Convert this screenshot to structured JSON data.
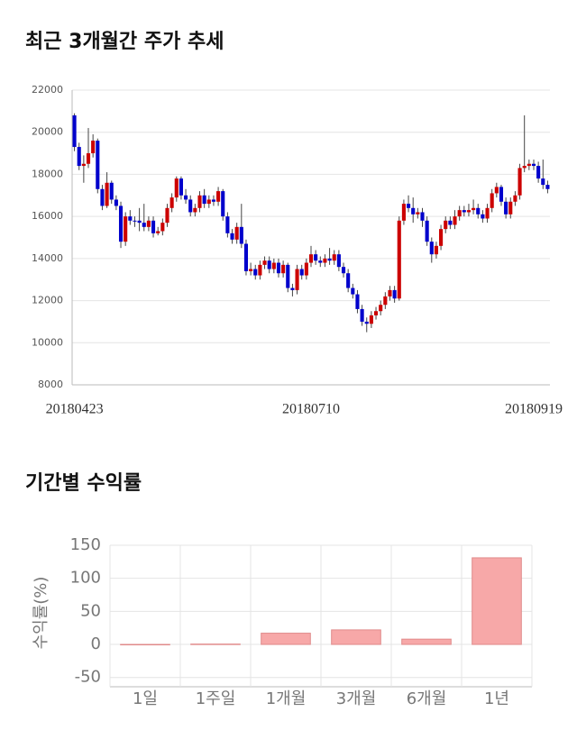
{
  "chart_data": [
    {
      "type": "candlestick",
      "title": "최근 3개월간 주가 추세",
      "categories": [
        "20180423",
        null,
        null,
        null,
        null,
        null,
        null,
        null,
        null,
        null,
        null,
        null,
        null,
        null,
        null,
        null,
        null,
        null,
        null,
        null,
        null,
        null,
        null,
        null,
        null,
        null,
        null,
        null,
        null,
        null,
        null,
        null,
        null,
        null,
        null,
        null,
        null,
        null,
        null,
        null,
        null,
        null,
        null,
        null,
        null,
        null,
        null,
        null,
        null,
        null,
        null,
        "20180710",
        null,
        null,
        null,
        null,
        null,
        null,
        null,
        null,
        null,
        null,
        null,
        null,
        null,
        null,
        null,
        null,
        null,
        null,
        null,
        null,
        null,
        null,
        null,
        null,
        null,
        null,
        null,
        null,
        null,
        null,
        null,
        null,
        null,
        null,
        null,
        null,
        null,
        null,
        null,
        null,
        null,
        null,
        null,
        null,
        null,
        null,
        null,
        "20180919",
        null,
        null,
        null
      ],
      "open": [
        20800,
        19300,
        18400,
        18500,
        19000,
        19600,
        17300,
        16500,
        17600,
        16800,
        16500,
        14800,
        16000,
        15800,
        15800,
        15700,
        15500,
        15800,
        15200,
        15300,
        15700,
        16400,
        16900,
        17800,
        17000,
        16800,
        16200,
        16400,
        17000,
        16600,
        16800,
        16700,
        17200,
        16000,
        15200,
        14900,
        15500,
        14700,
        13400,
        13500,
        13200,
        13700,
        13900,
        13500,
        13800,
        13300,
        13700,
        12600,
        12500,
        13500,
        13200,
        13800,
        14200,
        13900,
        13800,
        14000,
        13900,
        14200,
        13600,
        13300,
        12600,
        12300,
        11600,
        11000,
        10900,
        11300,
        11500,
        11800,
        12200,
        12500,
        12100,
        15800,
        16600,
        16400,
        16100,
        16200,
        15800,
        14800,
        14200,
        14600,
        15400,
        15800,
        15600,
        16000,
        16300,
        16200,
        16300,
        16400,
        16100,
        15900,
        16400,
        17100,
        17400,
        16700,
        16100,
        16700,
        17000,
        18300,
        18400,
        18500,
        18400,
        17800,
        17500
      ],
      "high": [
        20900,
        19500,
        18900,
        20200,
        19900,
        19700,
        17500,
        18100,
        17700,
        17000,
        16700,
        16200,
        16300,
        16000,
        16400,
        16600,
        16000,
        16000,
        15500,
        15900,
        16600,
        17100,
        17900,
        17900,
        17300,
        17000,
        16600,
        17200,
        17300,
        17000,
        17000,
        17400,
        17300,
        16200,
        15400,
        15700,
        16600,
        14900,
        13800,
        13700,
        13900,
        14100,
        14100,
        14000,
        14000,
        13900,
        13800,
        12800,
        13700,
        13700,
        14000,
        14600,
        14400,
        14100,
        14200,
        14500,
        14400,
        14400,
        13800,
        13500,
        12800,
        12500,
        11800,
        11200,
        11500,
        11700,
        12000,
        12400,
        12700,
        12700,
        16000,
        16800,
        17000,
        16900,
        16400,
        16400,
        16000,
        15000,
        14800,
        15600,
        16000,
        16000,
        16300,
        16500,
        16500,
        16600,
        16800,
        16600,
        16300,
        16600,
        17300,
        17600,
        17500,
        16900,
        16900,
        17200,
        18500,
        20800,
        18700,
        18700,
        18600,
        18700,
        17700
      ],
      "low": [
        19100,
        18200,
        17600,
        18300,
        18800,
        17100,
        16300,
        16400,
        16600,
        16300,
        14500,
        14600,
        15600,
        15500,
        15300,
        15300,
        15300,
        15000,
        15100,
        15100,
        15500,
        16200,
        16700,
        16800,
        16600,
        16000,
        16000,
        16200,
        16400,
        16400,
        16500,
        16500,
        15800,
        15000,
        14700,
        14700,
        14500,
        13200,
        13200,
        13000,
        13000,
        13500,
        13300,
        13300,
        13100,
        13100,
        12400,
        12200,
        12300,
        13000,
        13000,
        13600,
        13700,
        13600,
        13600,
        13700,
        13700,
        13400,
        13100,
        12400,
        12100,
        11400,
        10800,
        10500,
        10700,
        11100,
        11300,
        11600,
        12000,
        11900,
        12000,
        15600,
        16200,
        15700,
        15900,
        15500,
        14600,
        13800,
        14000,
        14400,
        15200,
        15400,
        15400,
        15800,
        16000,
        16000,
        16100,
        15900,
        15700,
        15700,
        16200,
        16900,
        16500,
        15900,
        15900,
        16500,
        16800,
        18100,
        18200,
        18200,
        17600,
        17300,
        17100
      ],
      "close": [
        19300,
        18400,
        18500,
        19000,
        19600,
        17300,
        16500,
        17600,
        16800,
        16500,
        14800,
        16000,
        15800,
        15800,
        15700,
        15500,
        15800,
        15200,
        15300,
        15700,
        16400,
        16900,
        17800,
        17000,
        16800,
        16200,
        16400,
        17000,
        16600,
        16800,
        16700,
        17200,
        16000,
        15200,
        14900,
        15500,
        14700,
        13400,
        13500,
        13200,
        13700,
        13900,
        13500,
        13800,
        13300,
        13700,
        12600,
        12500,
        13500,
        13200,
        13800,
        14200,
        13900,
        13800,
        14000,
        13900,
        14200,
        13600,
        13300,
        12600,
        12300,
        11600,
        11000,
        10900,
        11300,
        11500,
        11800,
        12200,
        12500,
        12100,
        15800,
        16600,
        16400,
        16100,
        16200,
        15800,
        14800,
        14200,
        14600,
        15400,
        15800,
        15600,
        16000,
        16300,
        16200,
        16300,
        16400,
        16100,
        15900,
        16400,
        17100,
        17400,
        16700,
        16100,
        16700,
        17000,
        18300,
        18400,
        18500,
        18400,
        17800,
        17500,
        17300
      ],
      "up_color": "#cc0000",
      "down_color": "#0000cc",
      "ylim": [
        8000,
        22000
      ],
      "yticks": [
        8000,
        10000,
        12000,
        14000,
        16000,
        18000,
        20000,
        22000
      ],
      "grid": true
    },
    {
      "type": "bar",
      "title": "기간별 수익률",
      "y_label": "수익률(%)",
      "categories": [
        "1일",
        "1주일",
        "1개월",
        "3개월",
        "6개월",
        "1년"
      ],
      "values": [
        0,
        0.5,
        17,
        22,
        8,
        131
      ],
      "color": "#f7a8a8",
      "edge_color": "#e08a8a",
      "ylim": [
        -64,
        150
      ],
      "yticks": [
        -50,
        0,
        50,
        100,
        150
      ],
      "grid": true
    }
  ]
}
